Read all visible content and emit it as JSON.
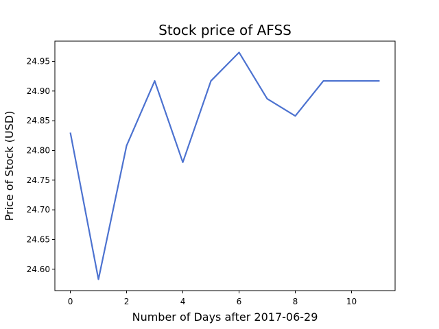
{
  "chart_data": {
    "type": "line",
    "title": "Stock price of AFSS",
    "xlabel": "Number of Days after 2017-06-29",
    "ylabel": "Price of Stock (USD)",
    "x": [
      0,
      1,
      2,
      3,
      4,
      5,
      6,
      7,
      8,
      9,
      10,
      11
    ],
    "series": [
      {
        "values": [
          24.83,
          24.583,
          24.808,
          24.917,
          24.78,
          24.917,
          24.965,
          24.887,
          24.858,
          24.917,
          24.917,
          24.917
        ]
      }
    ],
    "xlim": [
      -0.55,
      11.55
    ],
    "ylim": [
      24.564,
      24.984
    ],
    "xticks": [
      0,
      2,
      4,
      6,
      8,
      10
    ],
    "yticks": [
      24.6,
      24.65,
      24.7,
      24.75,
      24.8,
      24.85,
      24.9,
      24.95
    ],
    "ytick_labels": [
      "24.60",
      "24.65",
      "24.70",
      "24.75",
      "24.80",
      "24.85",
      "24.90",
      "24.95"
    ],
    "xtick_labels": [
      "0",
      "2",
      "4",
      "6",
      "8",
      "10"
    ],
    "line_color": "#4c72d0",
    "grid": false,
    "legend": "none"
  }
}
